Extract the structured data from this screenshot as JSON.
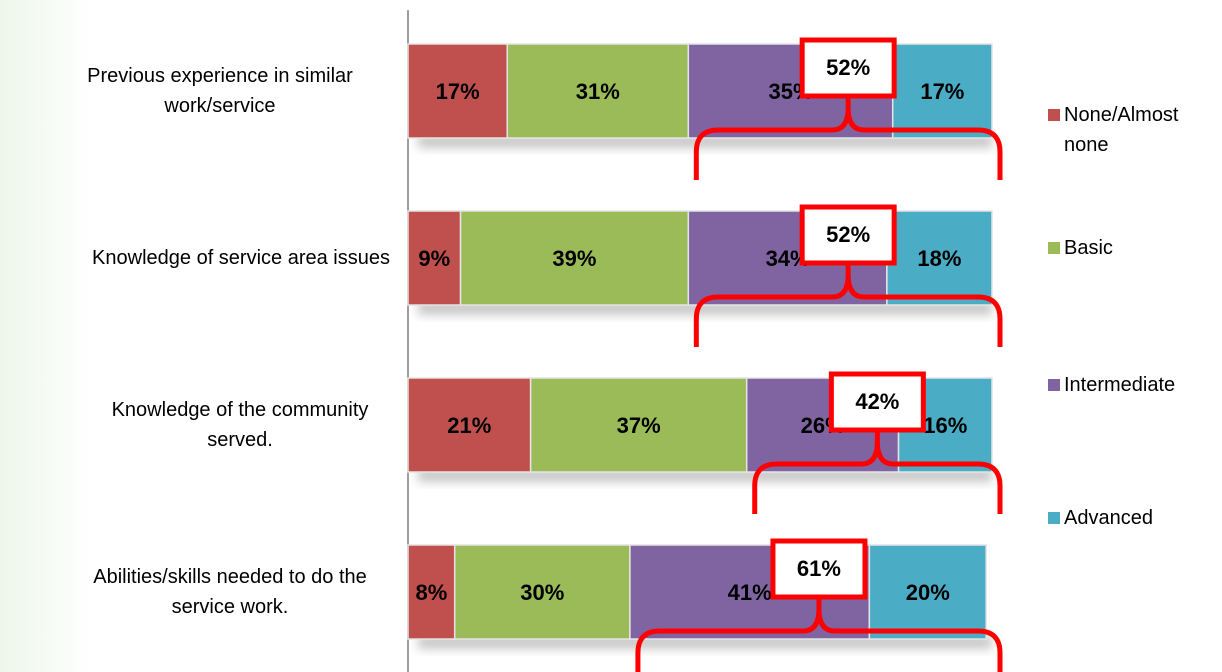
{
  "chart_data": {
    "type": "bar",
    "orientation": "horizontal",
    "stacked": true,
    "categories": [
      "Previous experience in similar work/service",
      "Knowledge of service area issues",
      "Knowledge of the community served.",
      "Abilities/skills needed to do the service work."
    ],
    "series": [
      {
        "name": "None/Almost none",
        "color": "#c0504d",
        "values": [
          17,
          9,
          21,
          8
        ],
        "value_labels": [
          "17%",
          "9%",
          "21%",
          "8%"
        ]
      },
      {
        "name": "Basic",
        "color": "#9bbb59",
        "values": [
          31,
          39,
          37,
          30
        ],
        "value_labels": [
          "31%",
          "39%",
          "37%",
          "30%"
        ]
      },
      {
        "name": "Intermediate",
        "color": "#8064a2",
        "values": [
          35,
          34,
          26,
          41
        ],
        "value_labels": [
          "35%",
          "34%",
          "26%",
          "41%"
        ]
      },
      {
        "name": "Advanced",
        "color": "#4bacc6",
        "values": [
          17,
          18,
          16,
          20
        ],
        "value_labels": [
          "17%",
          "18%",
          "16%",
          "20%"
        ]
      }
    ],
    "annotations": [
      "52%",
      "52%",
      "42%",
      "61%"
    ],
    "annotation_color": "#ff0000",
    "xlim": [
      0,
      100
    ],
    "legend": "right"
  }
}
